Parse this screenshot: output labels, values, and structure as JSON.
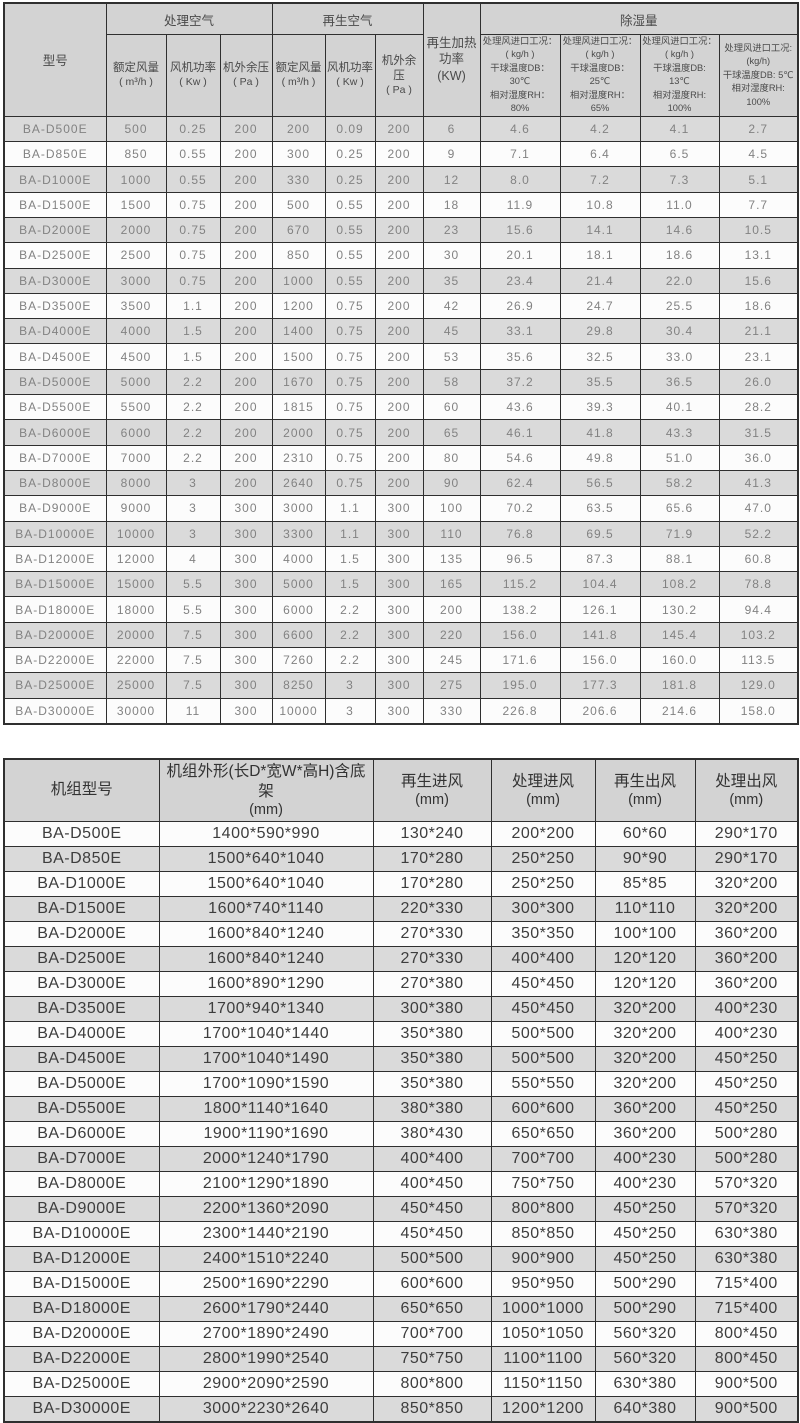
{
  "colors": {
    "border": "#2f2f2f",
    "header_bg": "#d3d3d3",
    "stripe_bg": "#dadada",
    "row_bg": "#fcfcfc",
    "header_text": "#4a4a4a",
    "data_text_primary": "#828282",
    "data_text_secondary": "#3d3d3d"
  },
  "performance_table": {
    "header": {
      "model": "型号",
      "process_air": "处理空气",
      "regen_air": "再生空气",
      "regen_heat_power": "再生加热\n功率\n(KW)",
      "dehumid": "除湿量",
      "subcols": [
        {
          "label": "额定风量",
          "unit": "( m³/h )"
        },
        {
          "label": "风机功率",
          "unit": "( Kw )"
        },
        {
          "label": "机外余压",
          "unit": "( Pa )"
        },
        {
          "label": "额定风量",
          "unit": "( m³/h )"
        },
        {
          "label": "风机功率",
          "unit": "( Kw )"
        },
        {
          "label": "机外余压",
          "unit": "( Pa )"
        }
      ],
      "conditions": [
        "处理风进口工况：\n( kg/h )\n干球温度DB：30℃\n相对湿度RH：80%",
        "处理风进口工况：\n( kg/h )\n干球温度DB：25℃\n相对湿度RH：65%",
        "处理风进口工况：\n( kg/h )\n干球温度DB: 13℃\n相对湿度RH: 100%",
        "处理风进口工况:\n(kg/h)\n干球温度DB: 5℃ \n相对湿度RH: 100%"
      ]
    },
    "rows": [
      [
        "BA-D500E",
        "500",
        "0.25",
        "200",
        "200",
        "0.09",
        "200",
        "6",
        "4.6",
        "4.2",
        "4.1",
        "2.7"
      ],
      [
        "BA-D850E",
        "850",
        "0.55",
        "200",
        "300",
        "0.25",
        "200",
        "9",
        "7.1",
        "6.4",
        "6.5",
        "4.5"
      ],
      [
        "BA-D1000E",
        "1000",
        "0.55",
        "200",
        "330",
        "0.25",
        "200",
        "12",
        "8.0",
        "7.2",
        "7.3",
        "5.1"
      ],
      [
        "BA-D1500E",
        "1500",
        "0.75",
        "200",
        "500",
        "0.55",
        "200",
        "18",
        "11.9",
        "10.8",
        "11.0",
        "7.7"
      ],
      [
        "BA-D2000E",
        "2000",
        "0.75",
        "200",
        "670",
        "0.55",
        "200",
        "23",
        "15.6",
        "14.1",
        "14.6",
        "10.5"
      ],
      [
        "BA-D2500E",
        "2500",
        "0.75",
        "200",
        "850",
        "0.55",
        "200",
        "30",
        "20.1",
        "18.1",
        "18.6",
        "13.1"
      ],
      [
        "BA-D3000E",
        "3000",
        "0.75",
        "200",
        "1000",
        "0.55",
        "200",
        "35",
        "23.4",
        "21.4",
        "22.0",
        "15.6"
      ],
      [
        "BA-D3500E",
        "3500",
        "1.1",
        "200",
        "1200",
        "0.75",
        "200",
        "42",
        "26.9",
        "24.7",
        "25.5",
        "18.6"
      ],
      [
        "BA-D4000E",
        "4000",
        "1.5",
        "200",
        "1400",
        "0.75",
        "200",
        "45",
        "33.1",
        "29.8",
        "30.4",
        "21.1"
      ],
      [
        "BA-D4500E",
        "4500",
        "1.5",
        "200",
        "1500",
        "0.75",
        "200",
        "53",
        "35.6",
        "32.5",
        "33.0",
        "23.1"
      ],
      [
        "BA-D5000E",
        "5000",
        "2.2",
        "200",
        "1670",
        "0.75",
        "200",
        "58",
        "37.2",
        "35.5",
        "36.5",
        "26.0"
      ],
      [
        "BA-D5500E",
        "5500",
        "2.2",
        "200",
        "1815",
        "0.75",
        "200",
        "60",
        "43.6",
        "39.3",
        "40.1",
        "28.2"
      ],
      [
        "BA-D6000E",
        "6000",
        "2.2",
        "200",
        "2000",
        "0.75",
        "200",
        "65",
        "46.1",
        "41.8",
        "43.3",
        "31.5"
      ],
      [
        "BA-D7000E",
        "7000",
        "2.2",
        "200",
        "2310",
        "0.75",
        "200",
        "80",
        "54.6",
        "49.8",
        "51.0",
        "36.0"
      ],
      [
        "BA-D8000E",
        "8000",
        "3",
        "200",
        "2640",
        "0.75",
        "200",
        "90",
        "62.4",
        "56.5",
        "58.2",
        "41.3"
      ],
      [
        "BA-D9000E",
        "9000",
        "3",
        "300",
        "3000",
        "1.1",
        "300",
        "100",
        "70.2",
        "63.5",
        "65.6",
        "47.0"
      ],
      [
        "BA-D10000E",
        "10000",
        "3",
        "300",
        "3300",
        "1.1",
        "300",
        "110",
        "76.8",
        "69.5",
        "71.9",
        "52.2"
      ],
      [
        "BA-D12000E",
        "12000",
        "4",
        "300",
        "4000",
        "1.5",
        "300",
        "135",
        "96.5",
        "87.3",
        "88.1",
        "60.8"
      ],
      [
        "BA-D15000E",
        "15000",
        "5.5",
        "300",
        "5000",
        "1.5",
        "300",
        "165",
        "115.2",
        "104.4",
        "108.2",
        "78.8"
      ],
      [
        "BA-D18000E",
        "18000",
        "5.5",
        "300",
        "6000",
        "2.2",
        "300",
        "200",
        "138.2",
        "126.1",
        "130.2",
        "94.4"
      ],
      [
        "BA-D20000E",
        "20000",
        "7.5",
        "300",
        "6600",
        "2.2",
        "300",
        "220",
        "156.0",
        "141.8",
        "145.4",
        "103.2"
      ],
      [
        "BA-D22000E",
        "22000",
        "7.5",
        "300",
        "7260",
        "2.2",
        "300",
        "245",
        "171.6",
        "156.0",
        "160.0",
        "113.5"
      ],
      [
        "BA-D25000E",
        "25000",
        "7.5",
        "300",
        "8250",
        "3",
        "300",
        "275",
        "195.0",
        "177.3",
        "181.8",
        "129.0"
      ],
      [
        "BA-D30000E",
        "30000",
        "11",
        "300",
        "10000",
        "3",
        "300",
        "330",
        "226.8",
        "206.6",
        "214.6",
        "158.0"
      ]
    ]
  },
  "dimensions_table": {
    "header": {
      "cols": [
        {
          "label": "机组型号",
          "unit": ""
        },
        {
          "label": "机组外形(长D*宽W*高H)含底架",
          "unit": "(mm)"
        },
        {
          "label": "再生进风",
          "unit": "(mm)"
        },
        {
          "label": "处理进风",
          "unit": "(mm)"
        },
        {
          "label": "再生出风",
          "unit": "(mm)"
        },
        {
          "label": "处理出风",
          "unit": "(mm)"
        }
      ]
    },
    "rows": [
      [
        "BA-D500E",
        "1400*590*990",
        "130*240",
        "200*200",
        "60*60",
        "290*170"
      ],
      [
        "BA-D850E",
        "1500*640*1040",
        "170*280",
        "250*250",
        "90*90",
        "290*170"
      ],
      [
        "BA-D1000E",
        "1500*640*1040",
        "170*280",
        "250*250",
        "85*85",
        "320*200"
      ],
      [
        "BA-D1500E",
        "1600*740*1140",
        "220*330",
        "300*300",
        "110*110",
        "320*200"
      ],
      [
        "BA-D2000E",
        "1600*840*1240",
        "270*330",
        "350*350",
        "100*100",
        "360*200"
      ],
      [
        "BA-D2500E",
        "1600*840*1240",
        "270*330",
        "400*400",
        "120*120",
        "360*200"
      ],
      [
        "BA-D3000E",
        "1600*890*1290",
        "270*380",
        "450*450",
        "120*120",
        "360*200"
      ],
      [
        "BA-D3500E",
        "1700*940*1340",
        "300*380",
        "450*450",
        "320*200",
        "400*230"
      ],
      [
        "BA-D4000E",
        "1700*1040*1440",
        "350*380",
        "500*500",
        "320*200",
        "400*230"
      ],
      [
        "BA-D4500E",
        "1700*1040*1490",
        "350*380",
        "500*500",
        "320*200",
        "450*250"
      ],
      [
        "BA-D5000E",
        "1700*1090*1590",
        "350*380",
        "550*550",
        "320*200",
        "450*250"
      ],
      [
        "BA-D5500E",
        "1800*1140*1640",
        "380*380",
        "600*600",
        "360*200",
        "450*250"
      ],
      [
        "BA-D6000E",
        "1900*1190*1690",
        "380*430",
        "650*650",
        "360*200",
        "500*280"
      ],
      [
        "BA-D7000E",
        "2000*1240*1790",
        "400*400",
        "700*700",
        "400*230",
        "500*280"
      ],
      [
        "BA-D8000E",
        "2100*1290*1890",
        "400*450",
        "750*750",
        "400*230",
        "570*320"
      ],
      [
        "BA-D9000E",
        "2200*1360*2090",
        "450*450",
        "800*800",
        "450*250",
        "570*320"
      ],
      [
        "BA-D10000E",
        "2300*1440*2190",
        "450*450",
        "850*850",
        "450*250",
        "630*380"
      ],
      [
        "BA-D12000E",
        "2400*1510*2240",
        "500*500",
        "900*900",
        "450*250",
        "630*380"
      ],
      [
        "BA-D15000E",
        "2500*1690*2290",
        "600*600",
        "950*950",
        "500*290",
        "715*400"
      ],
      [
        "BA-D18000E",
        "2600*1790*2440",
        "650*650",
        "1000*1000",
        "500*290",
        "715*400"
      ],
      [
        "BA-D20000E",
        "2700*1890*2490",
        "700*700",
        "1050*1050",
        "560*320",
        "800*450"
      ],
      [
        "BA-D22000E",
        "2800*1990*2540",
        "750*750",
        "1100*1100",
        "560*320",
        "800*450"
      ],
      [
        "BA-D25000E",
        "2900*2090*2590",
        "800*800",
        "1150*1150",
        "630*380",
        "900*500"
      ],
      [
        "BA-D30000E",
        "3000*2230*2640",
        "850*850",
        "1200*1200",
        "640*380",
        "900*500"
      ]
    ]
  }
}
